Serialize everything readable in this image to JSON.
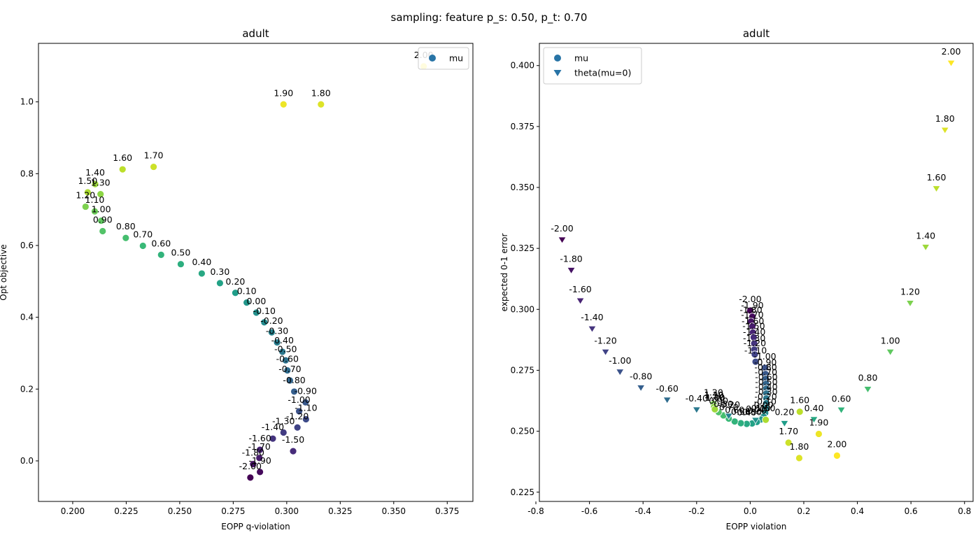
{
  "figure": {
    "suptitle": "sampling: feature p_s: 0.50, p_t: 0.70"
  },
  "chart_data": [
    {
      "type": "scatter",
      "title": "adult",
      "xlabel": "EOPP q-violation",
      "ylabel": "Opt objective",
      "xlim": [
        0.184,
        0.387
      ],
      "ylim": [
        -0.113,
        1.163
      ],
      "xticks": [
        "0.200",
        "0.225",
        "0.250",
        "0.275",
        "0.300",
        "0.325",
        "0.350",
        "0.375"
      ],
      "yticks": [
        "0.0",
        "0.2",
        "0.4",
        "0.6",
        "0.8",
        "1.0"
      ],
      "grid": false,
      "legend": {
        "position": "top-right",
        "entries": [
          "mu"
        ]
      },
      "series": [
        {
          "name": "mu",
          "marker": "circle",
          "points": [
            {
              "label": "-2.00",
              "x": 0.283,
              "y": -0.0465
            },
            {
              "label": "-1.90",
              "x": 0.2875,
              "y": -0.031
            },
            {
              "label": "-1.80",
              "x": 0.2843,
              "y": -0.009
            },
            {
              "label": "-1.70",
              "x": 0.2872,
              "y": 0.008
            },
            {
              "label": "-1.60",
              "x": 0.2875,
              "y": 0.031
            },
            {
              "label": "-1.50",
              "x": 0.303,
              "y": 0.027
            },
            {
              "label": "-1.40",
              "x": 0.2935,
              "y": 0.062
            },
            {
              "label": "-1.30",
              "x": 0.2985,
              "y": 0.079
            },
            {
              "label": "-1.20",
              "x": 0.305,
              "y": 0.093
            },
            {
              "label": "-1.10",
              "x": 0.309,
              "y": 0.116
            },
            {
              "label": "-1.00",
              "x": 0.3058,
              "y": 0.138
            },
            {
              "label": "-0.90",
              "x": 0.3088,
              "y": 0.163
            },
            {
              "label": "-0.80",
              "x": 0.3035,
              "y": 0.193
            },
            {
              "label": "-0.70",
              "x": 0.3015,
              "y": 0.224
            },
            {
              "label": "-0.60",
              "x": 0.3003,
              "y": 0.252
            },
            {
              "label": "-0.50",
              "x": 0.2995,
              "y": 0.28
            },
            {
              "label": "-0.40",
              "x": 0.298,
              "y": 0.304
            },
            {
              "label": "-0.30",
              "x": 0.2955,
              "y": 0.33
            },
            {
              "label": "-0.20",
              "x": 0.293,
              "y": 0.358
            },
            {
              "label": "-0.10",
              "x": 0.2895,
              "y": 0.386
            },
            {
              "label": "0.00",
              "x": 0.2858,
              "y": 0.413
            },
            {
              "label": "0.10",
              "x": 0.2813,
              "y": 0.441
            },
            {
              "label": "0.20",
              "x": 0.276,
              "y": 0.468
            },
            {
              "label": "0.30",
              "x": 0.2688,
              "y": 0.495
            },
            {
              "label": "0.40",
              "x": 0.2603,
              "y": 0.522
            },
            {
              "label": "0.50",
              "x": 0.2505,
              "y": 0.548
            },
            {
              "label": "0.60",
              "x": 0.2413,
              "y": 0.574
            },
            {
              "label": "0.70",
              "x": 0.2328,
              "y": 0.599
            },
            {
              "label": "0.80",
              "x": 0.2248,
              "y": 0.621
            },
            {
              "label": "0.90",
              "x": 0.214,
              "y": 0.64
            },
            {
              "label": "1.00",
              "x": 0.2133,
              "y": 0.669
            },
            {
              "label": "1.10",
              "x": 0.2103,
              "y": 0.695
            },
            {
              "label": "1.20",
              "x": 0.206,
              "y": 0.708
            },
            {
              "label": "1.30",
              "x": 0.213,
              "y": 0.743
            },
            {
              "label": "1.40",
              "x": 0.2105,
              "y": 0.771
            },
            {
              "label": "1.50",
              "x": 0.207,
              "y": 0.748
            },
            {
              "label": "1.60",
              "x": 0.2233,
              "y": 0.812
            },
            {
              "label": "1.70",
              "x": 0.2378,
              "y": 0.819
            },
            {
              "label": "1.80",
              "x": 0.316,
              "y": 0.993
            },
            {
              "label": "1.90",
              "x": 0.2985,
              "y": 0.993
            },
            {
              "label": "2.00",
              "x": 0.364,
              "y": 1.099
            }
          ]
        }
      ]
    },
    {
      "type": "scatter",
      "title": "adult",
      "xlabel": "EOPP violation",
      "ylabel": "expected 0-1 error",
      "xlim": [
        -0.787,
        0.832
      ],
      "ylim": [
        0.2212,
        0.4091
      ],
      "xticks": [
        "-0.8",
        "-0.6",
        "-0.4",
        "-0.2",
        "0.0",
        "0.2",
        "0.4",
        "0.6",
        "0.8"
      ],
      "yticks": [
        "0.225",
        "0.250",
        "0.275",
        "0.300",
        "0.325",
        "0.350",
        "0.375",
        "0.400"
      ],
      "grid": false,
      "legend": {
        "position": "top-left",
        "entries": [
          "mu",
          "theta(mu=0)"
        ]
      },
      "series": [
        {
          "name": "mu",
          "marker": "circle",
          "points": [
            {
              "label": "-2.00",
              "x": 0.0,
              "y": 0.2995
            },
            {
              "label": "-1.90",
              "x": 0.008,
              "y": 0.297
            },
            {
              "label": "-1.80",
              "x": 0.003,
              "y": 0.295
            },
            {
              "label": "-1.70",
              "x": 0.008,
              "y": 0.293
            },
            {
              "label": "-1.60",
              "x": 0.01,
              "y": 0.2905
            },
            {
              "label": "-1.50",
              "x": 0.013,
              "y": 0.2885
            },
            {
              "label": "-1.40",
              "x": 0.015,
              "y": 0.286
            },
            {
              "label": "-1.30",
              "x": 0.015,
              "y": 0.2835
            },
            {
              "label": "-1.20",
              "x": 0.017,
              "y": 0.2815
            },
            {
              "label": "-1.10",
              "x": 0.02,
              "y": 0.2785
            },
            {
              "label": "-1.00",
              "x": 0.055,
              "y": 0.276
            },
            {
              "label": "-0.90",
              "x": 0.057,
              "y": 0.2735
            },
            {
              "label": "-0.80",
              "x": 0.058,
              "y": 0.2715
            },
            {
              "label": "-0.70",
              "x": 0.059,
              "y": 0.2695
            },
            {
              "label": "-0.60",
              "x": 0.06,
              "y": 0.2675
            },
            {
              "label": "-0.50",
              "x": 0.06,
              "y": 0.2655
            },
            {
              "label": "-0.40",
              "x": 0.06,
              "y": 0.2635
            },
            {
              "label": "-0.30",
              "x": 0.06,
              "y": 0.2615
            },
            {
              "label": "-0.20",
              "x": 0.058,
              "y": 0.2595
            },
            {
              "label": "-0.10",
              "x": 0.056,
              "y": 0.2575
            },
            {
              "label": "0.00",
              "x": 0.05,
              "y": 0.256
            },
            {
              "label": "0.10",
              "x": 0.04,
              "y": 0.2548
            },
            {
              "label": "0.20",
              "x": 0.025,
              "y": 0.2538
            },
            {
              "label": "0.30",
              "x": 0.007,
              "y": 0.2532
            },
            {
              "label": "0.40",
              "x": -0.013,
              "y": 0.253
            },
            {
              "label": "0.50",
              "x": -0.035,
              "y": 0.2533
            },
            {
              "label": "0.60",
              "x": -0.058,
              "y": 0.254
            },
            {
              "label": "0.70",
              "x": -0.08,
              "y": 0.2552
            },
            {
              "label": "0.80",
              "x": -0.1,
              "y": 0.2565
            },
            {
              "label": "0.90",
              "x": -0.118,
              "y": 0.2578
            },
            {
              "label": "1.00",
              "x": -0.13,
              "y": 0.259
            },
            {
              "label": "1.10",
              "x": -0.135,
              "y": 0.2602
            },
            {
              "label": "1.20",
              "x": -0.137,
              "y": 0.2612
            },
            {
              "label": "1.30",
              "x": -0.135,
              "y": 0.26
            },
            {
              "label": "1.40",
              "x": -0.132,
              "y": 0.259
            },
            {
              "label": "1.50",
              "x": 0.058,
              "y": 0.2547
            },
            {
              "label": "1.60",
              "x": 0.185,
              "y": 0.258
            },
            {
              "label": "1.70",
              "x": 0.143,
              "y": 0.2453
            },
            {
              "label": "1.80",
              "x": 0.183,
              "y": 0.239
            },
            {
              "label": "1.90",
              "x": 0.256,
              "y": 0.2489
            },
            {
              "label": "2.00",
              "x": 0.324,
              "y": 0.24
            }
          ]
        },
        {
          "name": "theta(mu=0)",
          "marker": "triangle_down",
          "points": [
            {
              "label": "-2.00",
              "x": -0.702,
              "y": 0.3285
            },
            {
              "label": "-1.80",
              "x": -0.668,
              "y": 0.316
            },
            {
              "label": "-1.60",
              "x": -0.634,
              "y": 0.3035
            },
            {
              "label": "-1.40",
              "x": -0.59,
              "y": 0.292
            },
            {
              "label": "-1.20",
              "x": -0.54,
              "y": 0.2825
            },
            {
              "label": "-1.00",
              "x": -0.486,
              "y": 0.2743
            },
            {
              "label": "-0.80",
              "x": -0.408,
              "y": 0.2678
            },
            {
              "label": "-0.60",
              "x": -0.31,
              "y": 0.2628
            },
            {
              "label": "-0.40",
              "x": -0.2,
              "y": 0.2588
            },
            {
              "label": "-0.20",
              "x": -0.08,
              "y": 0.2562
            },
            {
              "label": "0.00",
              "x": 0.02,
              "y": 0.2545
            },
            {
              "label": "0.20",
              "x": 0.128,
              "y": 0.2532
            },
            {
              "label": "0.40",
              "x": 0.238,
              "y": 0.2548
            },
            {
              "label": "0.60",
              "x": 0.34,
              "y": 0.2587
            },
            {
              "label": "0.80",
              "x": 0.439,
              "y": 0.2672
            },
            {
              "label": "1.00",
              "x": 0.523,
              "y": 0.2825
            },
            {
              "label": "1.20",
              "x": 0.597,
              "y": 0.3025
            },
            {
              "label": "1.40",
              "x": 0.655,
              "y": 0.3255
            },
            {
              "label": "1.60",
              "x": 0.695,
              "y": 0.3495
            },
            {
              "label": "1.80",
              "x": 0.727,
              "y": 0.3735
            },
            {
              "label": "2.00",
              "x": 0.75,
              "y": 0.401
            }
          ]
        }
      ]
    }
  ]
}
